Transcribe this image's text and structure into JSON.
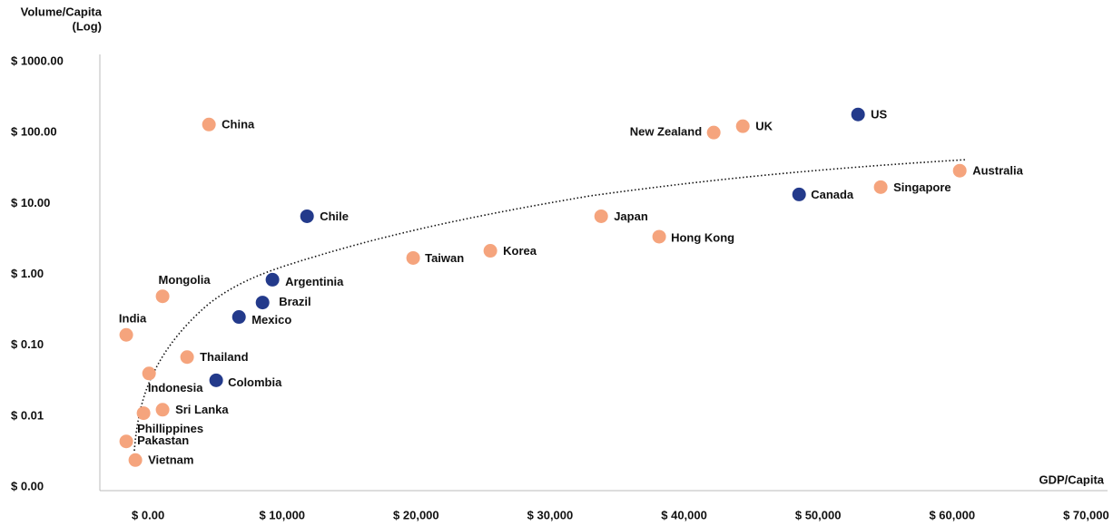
{
  "chart_data": {
    "type": "scatter",
    "y_label": [
      "Volume/Capita",
      "(Log)"
    ],
    "x_label": "GDP/Capita",
    "log_y": true,
    "xlim": [
      -3600,
      71600
    ],
    "ylim": [
      0.001,
      1000
    ],
    "xticks": [
      {
        "value": 0,
        "label": "$ 0.00"
      },
      {
        "value": 10000,
        "label": "$ 10,000"
      },
      {
        "value": 20000,
        "label": "$ 20,000"
      },
      {
        "value": 30000,
        "label": "$ 30,000"
      },
      {
        "value": 40000,
        "label": "$ 40,000"
      },
      {
        "value": 50000,
        "label": "$ 50,000"
      },
      {
        "value": 60000,
        "label": "$ 60,000"
      },
      {
        "value": 70000,
        "label": "$ 70,000"
      }
    ],
    "yticks": [
      {
        "value": 1000,
        "label": "$ 1000.00"
      },
      {
        "value": 100,
        "label": "$ 100.00"
      },
      {
        "value": 10,
        "label": "$ 10.00"
      },
      {
        "value": 1,
        "label": "$ 1.00"
      },
      {
        "value": 0.1,
        "label": "$ 0.10"
      },
      {
        "value": 0.01,
        "label": "$ 0.01"
      },
      {
        "value": 0.001,
        "label": "$ 0.00"
      }
    ],
    "series": [
      {
        "color": "#f5a47d",
        "labels": [
          "China",
          "Mongolia",
          "India",
          "Thailand",
          "Indonesia",
          "Sri Lanka",
          "Phillippines",
          "Pakastan",
          "Vietnam",
          "Taiwan",
          "Korea",
          "Japan",
          "Hong Kong",
          "New Zealand",
          "UK",
          "Singapore",
          "Australia"
        ],
        "x": [
          4540,
          1080,
          -1630,
          2910,
          70,
          1080,
          -340,
          -1630,
          -950,
          19780,
          25540,
          33810,
          38140,
          42210,
          44380,
          54670,
          60570
        ],
        "values": [
          130,
          0.49,
          0.14,
          0.068,
          0.04,
          0.0123,
          0.011,
          0.0044,
          0.0024,
          1.7,
          2.15,
          6.6,
          3.4,
          100,
          123,
          17,
          29
        ]
      },
      {
        "color": "#233a8b",
        "labels": [
          "Chile",
          "Argentinia",
          "Brazil",
          "Mexico",
          "Colombia",
          "US",
          "Canada"
        ],
        "x": [
          11860,
          9280,
          8540,
          6780,
          5080,
          52980,
          48580
        ],
        "values": [
          6.6,
          0.84,
          0.4,
          0.25,
          0.032,
          180,
          13.4
        ]
      }
    ]
  }
}
